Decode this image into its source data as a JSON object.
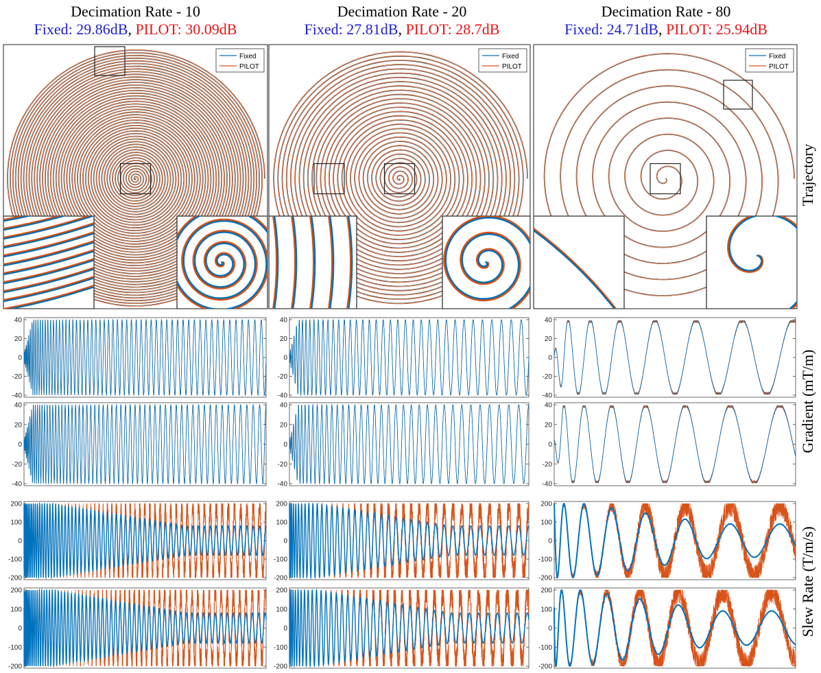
{
  "colors": {
    "fixed": "#0072bd",
    "pilot": "#d95319",
    "gray": "#555555",
    "fixed_title": "#1f1fd6",
    "pilot_title": "#e81414"
  },
  "columns": [
    {
      "title": "Decimation Rate - 10",
      "fixed_score": "Fixed: 29.86dB",
      "sep": ", ",
      "pilot_score": "PILOT: 30.09dB"
    },
    {
      "title": "Decimation Rate - 20",
      "fixed_score": "Fixed: 27.81dB",
      "sep": ", ",
      "pilot_score": "PILOT: 28.7dB"
    },
    {
      "title": "Decimation Rate - 80",
      "fixed_score": "Fixed: 24.71dB",
      "sep": ", ",
      "pilot_score": "PILOT: 25.94dB"
    }
  ],
  "row_labels": {
    "trajectory": "Trajectory",
    "gradient": "Gradient (mT/m)",
    "slew": "Slew Rate (T/m/s)"
  },
  "chart_data": [
    {
      "type": "line",
      "panel": "trajectory",
      "decimation_rate": 10,
      "spiral_turns": 48,
      "legend": [
        "Fixed",
        "PILOT"
      ],
      "legend_position": "top-right"
    },
    {
      "type": "line",
      "panel": "trajectory",
      "decimation_rate": 20,
      "spiral_turns": 30,
      "legend": [
        "Fixed",
        "PILOT"
      ],
      "legend_position": "top-right"
    },
    {
      "type": "line",
      "panel": "trajectory",
      "decimation_rate": 80,
      "spiral_turns": 8,
      "legend": [
        "Fixed",
        "PILOT"
      ],
      "legend_position": "top-right"
    },
    {
      "type": "line",
      "panel": "gradient-x",
      "decimation_rate": 10,
      "ylim": [
        -40,
        40
      ],
      "yticks": [
        "40",
        "20",
        "0",
        "-20",
        "-40"
      ],
      "cycles": 60,
      "amplitude": 40
    },
    {
      "type": "line",
      "panel": "gradient-x",
      "decimation_rate": 20,
      "ylim": [
        -40,
        40
      ],
      "yticks": [
        "40",
        "20",
        "0",
        "-20",
        "-40"
      ],
      "cycles": 38,
      "amplitude": 40
    },
    {
      "type": "line",
      "panel": "gradient-x",
      "decimation_rate": 80,
      "ylim": [
        -40,
        40
      ],
      "yticks": [
        "40",
        "20",
        "0",
        "-20",
        "-40"
      ],
      "cycles": 7.3,
      "amplitude": 38
    },
    {
      "type": "line",
      "panel": "gradient-y",
      "decimation_rate": 10,
      "ylim": [
        -40,
        40
      ],
      "yticks": [
        "40",
        "20",
        "0",
        "-20",
        "-40"
      ],
      "cycles": 60,
      "amplitude": 40
    },
    {
      "type": "line",
      "panel": "gradient-y",
      "decimation_rate": 20,
      "ylim": [
        -40,
        40
      ],
      "yticks": [
        "40",
        "20",
        "0",
        "-20",
        "-40"
      ],
      "cycles": 38,
      "amplitude": 40
    },
    {
      "type": "line",
      "panel": "gradient-y",
      "decimation_rate": 80,
      "ylim": [
        -40,
        40
      ],
      "yticks": [
        "40",
        "20",
        "0",
        "-20",
        "-40"
      ],
      "cycles": 7.3,
      "amplitude": 38
    },
    {
      "type": "line",
      "panel": "slew-x",
      "decimation_rate": 10,
      "ylim": [
        -200,
        200
      ],
      "yticks": [
        "200",
        "100",
        "0",
        "-100",
        "-200"
      ],
      "cycles": 60,
      "fixed_max": 200,
      "fixed_end": 80
    },
    {
      "type": "line",
      "panel": "slew-x",
      "decimation_rate": 20,
      "ylim": [
        -200,
        200
      ],
      "yticks": [
        "200",
        "100",
        "0",
        "-100",
        "-200"
      ],
      "cycles": 38,
      "fixed_max": 200,
      "fixed_end": 80
    },
    {
      "type": "line",
      "panel": "slew-x",
      "decimation_rate": 80,
      "ylim": [
        -200,
        200
      ],
      "yticks": [
        "200",
        "100",
        "0",
        "-100",
        "-200"
      ],
      "cycles": 7.3,
      "fixed_max": 200,
      "fixed_end": 90
    },
    {
      "type": "line",
      "panel": "slew-y",
      "decimation_rate": 10,
      "ylim": [
        -200,
        200
      ],
      "yticks": [
        "200",
        "100",
        "0",
        "-100",
        "-200"
      ],
      "cycles": 60,
      "fixed_max": 200,
      "fixed_end": 80
    },
    {
      "type": "line",
      "panel": "slew-y",
      "decimation_rate": 20,
      "ylim": [
        -200,
        200
      ],
      "yticks": [
        "200",
        "100",
        "0",
        "-100",
        "-200"
      ],
      "cycles": 38,
      "fixed_max": 200,
      "fixed_end": 80
    },
    {
      "type": "line",
      "panel": "slew-y",
      "decimation_rate": 80,
      "ylim": [
        -200,
        200
      ],
      "yticks": [
        "200",
        "100",
        "0",
        "-100",
        "-200"
      ],
      "cycles": 7.3,
      "fixed_max": 200,
      "fixed_end": 90
    }
  ]
}
